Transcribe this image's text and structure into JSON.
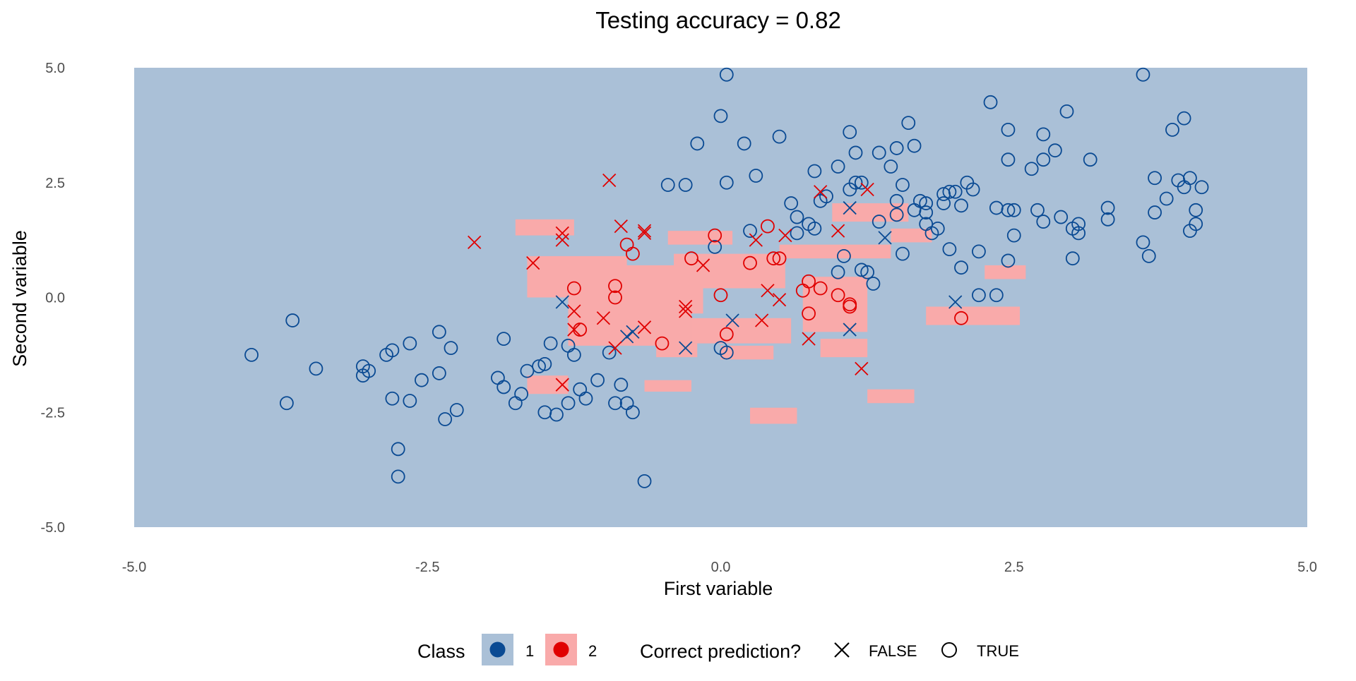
{
  "chart_data": {
    "type": "scatter",
    "title": "Testing accuracy = 0.82",
    "xlabel": "First variable",
    "ylabel": "Second variable",
    "xlim": [
      -5,
      5
    ],
    "ylim": [
      -5,
      5
    ],
    "x_ticks": [
      "-5.0",
      "-2.5",
      "0.0",
      "2.5",
      "5.0"
    ],
    "y_ticks": [
      "5.0",
      "2.5",
      "0.0",
      "-2.5",
      "-5.0"
    ],
    "grid": false,
    "legend_position": "bottom",
    "colors": {
      "class1_point": "#0a4a93",
      "class2_point": "#e00000",
      "class1_region": "#aac0d7",
      "class2_region": "#f9aaaa"
    },
    "legend": {
      "fill_title": "Class",
      "fill_labels": [
        "1",
        "2"
      ],
      "shape_title": "Correct prediction?",
      "shape_labels": [
        "FALSE",
        "TRUE"
      ]
    },
    "background_region": {
      "class": 1
    },
    "class2_regions": [
      {
        "x": [
          -1.75,
          -1.25
        ],
        "y": [
          1.35,
          1.7
        ]
      },
      {
        "x": [
          -1.65,
          -0.8
        ],
        "y": [
          0.0,
          0.9
        ]
      },
      {
        "x": [
          -1.3,
          -0.15
        ],
        "y": [
          -0.35,
          0.7
        ]
      },
      {
        "x": [
          -0.45,
          0.1
        ],
        "y": [
          1.15,
          1.45
        ]
      },
      {
        "x": [
          -0.4,
          0.55
        ],
        "y": [
          0.2,
          0.95
        ]
      },
      {
        "x": [
          0.5,
          1.45
        ],
        "y": [
          0.85,
          1.15
        ]
      },
      {
        "x": [
          0.95,
          1.6
        ],
        "y": [
          1.65,
          2.05
        ]
      },
      {
        "x": [
          1.45,
          1.8
        ],
        "y": [
          1.2,
          1.5
        ]
      },
      {
        "x": [
          -1.3,
          -0.25
        ],
        "y": [
          -1.05,
          -0.3
        ]
      },
      {
        "x": [
          -0.55,
          -0.2
        ],
        "y": [
          -1.3,
          -1.0
        ]
      },
      {
        "x": [
          -0.25,
          0.6
        ],
        "y": [
          -1.0,
          -0.45
        ]
      },
      {
        "x": [
          0.0,
          0.45
        ],
        "y": [
          -1.35,
          -1.05
        ]
      },
      {
        "x": [
          0.7,
          1.25
        ],
        "y": [
          -0.75,
          0.45
        ]
      },
      {
        "x": [
          0.85,
          1.25
        ],
        "y": [
          -1.3,
          -0.9
        ]
      },
      {
        "x": [
          1.75,
          2.55
        ],
        "y": [
          -0.6,
          -0.2
        ]
      },
      {
        "x": [
          2.25,
          2.6
        ],
        "y": [
          0.4,
          0.7
        ]
      },
      {
        "x": [
          -1.65,
          -1.3
        ],
        "y": [
          -2.1,
          -1.7
        ]
      },
      {
        "x": [
          -0.65,
          -0.25
        ],
        "y": [
          -2.05,
          -1.8
        ]
      },
      {
        "x": [
          1.25,
          1.65
        ],
        "y": [
          -2.3,
          -2.0
        ]
      },
      {
        "x": [
          0.25,
          0.65
        ],
        "y": [
          -2.75,
          -2.4
        ]
      }
    ],
    "series": [
      {
        "name": "1",
        "correct": "TRUE",
        "points": [
          [
            -4.0,
            -1.25
          ],
          [
            -3.7,
            -2.3
          ],
          [
            -3.65,
            -0.5
          ],
          [
            -3.45,
            -1.55
          ],
          [
            -3.05,
            -1.5
          ],
          [
            -3.05,
            -1.7
          ],
          [
            -3.0,
            -1.6
          ],
          [
            -2.85,
            -1.25
          ],
          [
            -2.8,
            -1.15
          ],
          [
            -2.8,
            -2.2
          ],
          [
            -2.75,
            -3.3
          ],
          [
            -2.75,
            -3.9
          ],
          [
            -2.65,
            -1.0
          ],
          [
            -2.65,
            -2.25
          ],
          [
            -2.55,
            -1.8
          ],
          [
            -2.4,
            -1.65
          ],
          [
            -2.4,
            -0.75
          ],
          [
            -2.35,
            -2.65
          ],
          [
            -2.3,
            -1.1
          ],
          [
            -2.25,
            -2.45
          ],
          [
            -1.9,
            -1.75
          ],
          [
            -1.85,
            -1.95
          ],
          [
            -1.85,
            -0.9
          ],
          [
            -1.75,
            -2.3
          ],
          [
            -1.7,
            -2.1
          ],
          [
            -1.65,
            -1.6
          ],
          [
            -1.55,
            -1.5
          ],
          [
            -1.5,
            -1.45
          ],
          [
            -1.5,
            -2.5
          ],
          [
            -1.45,
            -1.0
          ],
          [
            -1.4,
            -2.55
          ],
          [
            -1.3,
            -2.3
          ],
          [
            -1.3,
            -1.05
          ],
          [
            -1.25,
            -1.25
          ],
          [
            -1.2,
            -2.0
          ],
          [
            -1.15,
            -2.2
          ],
          [
            -1.05,
            -1.8
          ],
          [
            -0.95,
            -1.2
          ],
          [
            -0.9,
            -2.3
          ],
          [
            -0.85,
            -1.9
          ],
          [
            -0.8,
            -2.3
          ],
          [
            -0.75,
            -2.5
          ],
          [
            -0.65,
            -4.0
          ],
          [
            -0.45,
            2.45
          ],
          [
            -0.3,
            2.45
          ],
          [
            -0.2,
            3.35
          ],
          [
            -0.05,
            1.1
          ],
          [
            0.0,
            -1.1
          ],
          [
            0.0,
            3.95
          ],
          [
            0.05,
            2.5
          ],
          [
            0.05,
            -1.2
          ],
          [
            0.05,
            4.85
          ],
          [
            0.2,
            3.35
          ],
          [
            0.25,
            1.45
          ],
          [
            0.3,
            2.65
          ],
          [
            0.5,
            3.5
          ],
          [
            0.6,
            2.05
          ],
          [
            0.65,
            1.4
          ],
          [
            0.65,
            1.75
          ],
          [
            0.75,
            1.6
          ],
          [
            0.8,
            1.5
          ],
          [
            0.8,
            2.75
          ],
          [
            0.85,
            2.1
          ],
          [
            0.9,
            2.2
          ],
          [
            1.0,
            2.85
          ],
          [
            1.0,
            0.55
          ],
          [
            1.05,
            0.9
          ],
          [
            1.1,
            3.6
          ],
          [
            1.1,
            2.35
          ],
          [
            1.15,
            2.5
          ],
          [
            1.15,
            3.15
          ],
          [
            1.2,
            2.5
          ],
          [
            1.2,
            0.6
          ],
          [
            1.25,
            0.55
          ],
          [
            1.3,
            0.3
          ],
          [
            1.35,
            1.65
          ],
          [
            1.35,
            3.15
          ],
          [
            1.45,
            2.85
          ],
          [
            1.5,
            3.25
          ],
          [
            1.5,
            2.1
          ],
          [
            1.5,
            1.8
          ],
          [
            1.55,
            2.45
          ],
          [
            1.55,
            0.95
          ],
          [
            1.6,
            3.8
          ],
          [
            1.65,
            3.3
          ],
          [
            1.65,
            1.9
          ],
          [
            1.7,
            2.1
          ],
          [
            1.75,
            1.85
          ],
          [
            1.75,
            2.05
          ],
          [
            1.75,
            1.6
          ],
          [
            1.8,
            1.4
          ],
          [
            1.85,
            1.5
          ],
          [
            1.9,
            2.05
          ],
          [
            1.9,
            2.25
          ],
          [
            1.95,
            2.3
          ],
          [
            1.95,
            1.05
          ],
          [
            2.0,
            2.3
          ],
          [
            2.05,
            2.0
          ],
          [
            2.05,
            0.65
          ],
          [
            2.1,
            2.5
          ],
          [
            2.15,
            2.35
          ],
          [
            2.2,
            0.05
          ],
          [
            2.2,
            1.0
          ],
          [
            2.3,
            4.25
          ],
          [
            2.35,
            1.95
          ],
          [
            2.35,
            0.05
          ],
          [
            2.45,
            1.9
          ],
          [
            2.45,
            3.65
          ],
          [
            2.45,
            3.0
          ],
          [
            2.45,
            0.8
          ],
          [
            2.5,
            1.9
          ],
          [
            2.5,
            1.35
          ],
          [
            2.65,
            2.8
          ],
          [
            2.7,
            1.9
          ],
          [
            2.75,
            3.55
          ],
          [
            2.75,
            3.0
          ],
          [
            2.75,
            1.65
          ],
          [
            2.85,
            3.2
          ],
          [
            2.9,
            1.75
          ],
          [
            2.95,
            4.05
          ],
          [
            3.0,
            1.5
          ],
          [
            3.0,
            0.85
          ],
          [
            3.05,
            1.6
          ],
          [
            3.05,
            1.4
          ],
          [
            3.15,
            3.0
          ],
          [
            3.3,
            1.7
          ],
          [
            3.3,
            1.95
          ],
          [
            3.6,
            4.85
          ],
          [
            3.6,
            1.2
          ],
          [
            3.65,
            0.9
          ],
          [
            3.7,
            1.85
          ],
          [
            3.7,
            2.6
          ],
          [
            3.8,
            2.15
          ],
          [
            3.85,
            3.65
          ],
          [
            3.9,
            2.55
          ],
          [
            3.95,
            3.9
          ],
          [
            3.95,
            2.4
          ],
          [
            4.0,
            2.6
          ],
          [
            4.0,
            1.45
          ],
          [
            4.05,
            1.9
          ],
          [
            4.05,
            1.6
          ],
          [
            4.1,
            2.4
          ]
        ]
      },
      {
        "name": "1",
        "correct": "FALSE",
        "points": [
          [
            -1.35,
            -0.1
          ],
          [
            -0.8,
            -0.85
          ],
          [
            -0.75,
            -0.75
          ],
          [
            -0.3,
            -1.1
          ],
          [
            0.1,
            -0.5
          ],
          [
            1.1,
            -0.7
          ],
          [
            1.1,
            1.95
          ],
          [
            1.4,
            1.3
          ],
          [
            2.0,
            -0.1
          ]
        ]
      },
      {
        "name": "2",
        "correct": "TRUE",
        "points": [
          [
            -1.25,
            0.2
          ],
          [
            -1.2,
            -0.7
          ],
          [
            -0.9,
            0.25
          ],
          [
            -0.9,
            0.0
          ],
          [
            -0.8,
            1.15
          ],
          [
            -0.75,
            0.95
          ],
          [
            -0.5,
            -1.0
          ],
          [
            -0.25,
            0.85
          ],
          [
            -0.05,
            1.35
          ],
          [
            0.0,
            0.05
          ],
          [
            0.05,
            -0.8
          ],
          [
            0.25,
            0.75
          ],
          [
            0.4,
            1.55
          ],
          [
            0.45,
            0.85
          ],
          [
            0.5,
            0.85
          ],
          [
            0.7,
            0.15
          ],
          [
            0.75,
            0.35
          ],
          [
            0.75,
            -0.35
          ],
          [
            0.85,
            0.2
          ],
          [
            1.0,
            0.05
          ],
          [
            1.1,
            -0.15
          ],
          [
            1.1,
            -0.2
          ],
          [
            2.05,
            -0.45
          ]
        ]
      },
      {
        "name": "2",
        "correct": "FALSE",
        "points": [
          [
            -2.1,
            1.2
          ],
          [
            -1.6,
            0.75
          ],
          [
            -1.35,
            1.4
          ],
          [
            -1.35,
            1.25
          ],
          [
            -1.35,
            -1.9
          ],
          [
            -1.25,
            -0.3
          ],
          [
            -1.25,
            -0.7
          ],
          [
            -1.0,
            -0.45
          ],
          [
            -0.95,
            2.55
          ],
          [
            -0.9,
            -1.1
          ],
          [
            -0.85,
            1.55
          ],
          [
            -0.65,
            1.45
          ],
          [
            -0.65,
            1.4
          ],
          [
            -0.65,
            -0.65
          ],
          [
            -0.3,
            -0.3
          ],
          [
            -0.3,
            -0.2
          ],
          [
            -0.15,
            0.7
          ],
          [
            0.3,
            1.25
          ],
          [
            0.35,
            -0.5
          ],
          [
            0.4,
            0.15
          ],
          [
            0.5,
            -0.05
          ],
          [
            0.55,
            1.35
          ],
          [
            0.75,
            -0.9
          ],
          [
            0.85,
            2.3
          ],
          [
            1.0,
            1.45
          ],
          [
            1.2,
            -1.55
          ],
          [
            1.25,
            2.35
          ]
        ]
      }
    ]
  }
}
